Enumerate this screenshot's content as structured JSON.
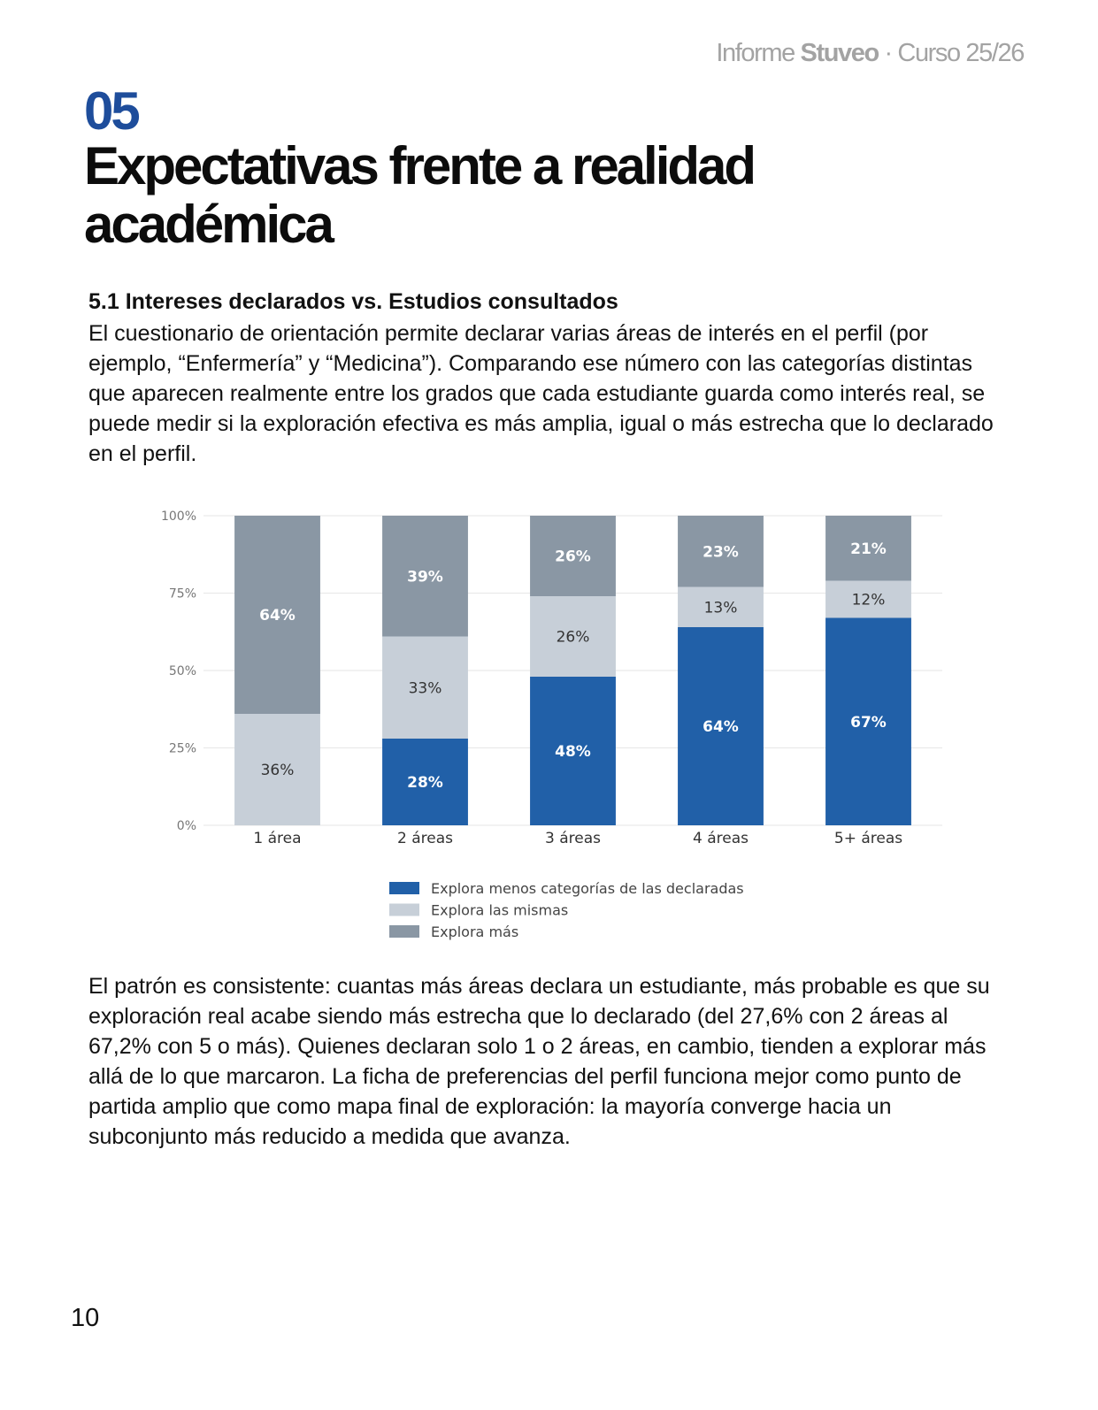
{
  "header": {
    "prefix": "Informe ",
    "brand": "Stuveo",
    "suffix": " · Curso 25/26"
  },
  "section": {
    "number": "05",
    "title": "Expectativas frente a realidad académica"
  },
  "subsection": {
    "title": "5.1 Intereses declarados vs. Estudios consultados",
    "intro": "El cuestionario de orientación permite declarar varias áreas de interés en el perfil (por ejemplo, “Enfermería” y “Medicina”). Comparando ese número con las categorías distintas que aparecen realmente entre los grados que cada estudiante guarda como interés real, se puede medir si la exploración efectiva es más amplia, igual o más estrecha que lo declarado en el perfil.",
    "conclusion": "El patrón es consistente: cuantas más áreas declara un estudiante, más probable es que su exploración real acabe siendo más estrecha que lo declarado (del 27,6% con 2 áreas al 67,2% con 5 o más). Quienes declaran solo 1 o 2 áreas, en cambio, tienden a explorar más allá de lo que marcaron. La ficha de preferencias del perfil funciona mejor como punto de partida amplio que como mapa final de exploración: la mayoría converge hacia un subconjunto más reducido a medida que avanza."
  },
  "chart_data": {
    "type": "bar",
    "stacked": true,
    "categories": [
      "1 área",
      "2 áreas",
      "3 áreas",
      "4 áreas",
      "5+ áreas"
    ],
    "series": [
      {
        "name": "Explora menos categorías de las declaradas",
        "values": [
          0,
          28,
          48,
          64,
          67
        ],
        "labels": [
          "",
          "28%",
          "48%",
          "64%",
          "67%"
        ],
        "color": "#2160a8",
        "label_color": "#ffffff"
      },
      {
        "name": "Explora las mismas",
        "values": [
          36,
          33,
          26,
          13,
          12
        ],
        "labels": [
          "36%",
          "33%",
          "26%",
          "13%",
          "12%"
        ],
        "color": "#c7cfd8",
        "label_color": "#333333"
      },
      {
        "name": "Explora más",
        "values": [
          64,
          39,
          26,
          23,
          21
        ],
        "labels": [
          "64%",
          "39%",
          "26%",
          "23%",
          "21%"
        ],
        "color": "#8a97a4",
        "label_color": "#ffffff"
      }
    ],
    "ylim": [
      0,
      100
    ],
    "yticks": [
      "0%",
      "25%",
      "50%",
      "75%",
      "100%"
    ],
    "grid": true,
    "legend_position": "bottom"
  },
  "footer": {
    "page_number": "10"
  }
}
